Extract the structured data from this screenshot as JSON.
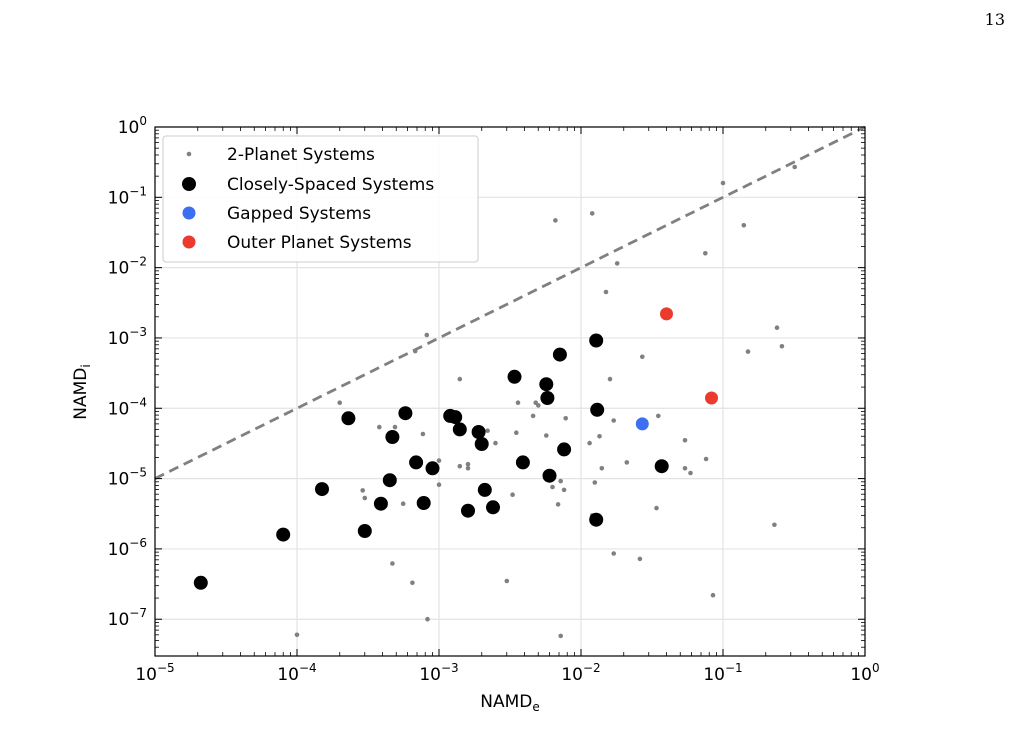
{
  "page_number": "13",
  "chart_data": {
    "type": "scatter",
    "xscale": "log",
    "yscale": "log",
    "xlim": [
      1e-05,
      1
    ],
    "ylim": [
      3e-08,
      1
    ],
    "xlabel": {
      "base": "NAMD",
      "sub": "e"
    },
    "ylabel": {
      "base": "NAMD",
      "sub": "i"
    },
    "xticks": [
      {
        "base": "10",
        "exp": "−5",
        "value": 1e-05
      },
      {
        "base": "10",
        "exp": "−4",
        "value": 0.0001
      },
      {
        "base": "10",
        "exp": "−3",
        "value": 0.001
      },
      {
        "base": "10",
        "exp": "−2",
        "value": 0.01
      },
      {
        "base": "10",
        "exp": "−1",
        "value": 0.1
      },
      {
        "base": "10",
        "exp": "0",
        "value": 1
      }
    ],
    "yticks": [
      {
        "base": "10",
        "exp": "−7",
        "value": 1e-07
      },
      {
        "base": "10",
        "exp": "−6",
        "value": 1e-06
      },
      {
        "base": "10",
        "exp": "−5",
        "value": 1e-05
      },
      {
        "base": "10",
        "exp": "−4",
        "value": 0.0001
      },
      {
        "base": "10",
        "exp": "−3",
        "value": 0.001
      },
      {
        "base": "10",
        "exp": "−2",
        "value": 0.01
      },
      {
        "base": "10",
        "exp": "−1",
        "value": 0.1
      },
      {
        "base": "10",
        "exp": "0",
        "value": 1
      }
    ],
    "grid": true,
    "legend_position": "upper-left",
    "reference_line": {
      "style": "dashed",
      "color": "#808080",
      "x": [
        1e-05,
        1
      ],
      "y": [
        1e-05,
        1
      ]
    },
    "series": [
      {
        "name": "2-Planet Systems",
        "color": "#808080",
        "marker": "small",
        "points": [
          [
            0.0001,
            6e-08
          ],
          [
            0.0002,
            0.00012
          ],
          [
            0.00029,
            6.8e-06
          ],
          [
            0.0003,
            5.3e-06
          ],
          [
            0.00038,
            5.4e-05
          ],
          [
            0.00047,
            6.2e-07
          ],
          [
            0.00049,
            5.4e-05
          ],
          [
            0.00056,
            4.4e-06
          ],
          [
            0.00065,
            3.3e-07
          ],
          [
            0.00068,
            0.00065
          ],
          [
            0.00077,
            4.3e-05
          ],
          [
            0.00082,
            0.0011
          ],
          [
            0.00083,
            1e-07
          ],
          [
            0.001,
            1.8e-05
          ],
          [
            0.001,
            8.2e-06
          ],
          [
            0.0014,
            0.00026
          ],
          [
            0.0014,
            1.5e-05
          ],
          [
            0.0016,
            1.6e-05
          ],
          [
            0.0016,
            1.4e-05
          ],
          [
            0.0022,
            4.8e-05
          ],
          [
            0.0025,
            3.2e-05
          ],
          [
            0.003,
            3.5e-07
          ],
          [
            0.0033,
            5.9e-06
          ],
          [
            0.0035,
            4.5e-05
          ],
          [
            0.0036,
            0.00012
          ],
          [
            0.0046,
            7.8e-05
          ],
          [
            0.0048,
            0.00012
          ],
          [
            0.005,
            0.00011
          ],
          [
            0.0057,
            4.1e-05
          ],
          [
            0.0063,
            7.6e-06
          ],
          [
            0.0066,
            0.047
          ],
          [
            0.0069,
            4.3e-06
          ],
          [
            0.0072,
            9.2e-06
          ],
          [
            0.0072,
            5.8e-08
          ],
          [
            0.0076,
            6.9e-06
          ],
          [
            0.0078,
            7.2e-05
          ],
          [
            0.0115,
            3.2e-05
          ],
          [
            0.012,
            3e-06
          ],
          [
            0.012,
            0.059
          ],
          [
            0.0125,
            8.8e-06
          ],
          [
            0.0135,
            4e-05
          ],
          [
            0.014,
            1.4e-05
          ],
          [
            0.015,
            0.0045
          ],
          [
            0.016,
            0.00026
          ],
          [
            0.017,
            8.6e-07
          ],
          [
            0.017,
            6.7e-05
          ],
          [
            0.018,
            0.0115
          ],
          [
            0.021,
            1.7e-05
          ],
          [
            0.026,
            7.2e-07
          ],
          [
            0.027,
            0.00054
          ],
          [
            0.034,
            3.8e-06
          ],
          [
            0.035,
            7.8e-05
          ],
          [
            0.054,
            3.5e-05
          ],
          [
            0.054,
            1.4e-05
          ],
          [
            0.059,
            1.2e-05
          ],
          [
            0.075,
            0.016
          ],
          [
            0.076,
            1.9e-05
          ],
          [
            0.079,
            0.00015
          ],
          [
            0.085,
            2.2e-07
          ],
          [
            0.1,
            0.16
          ],
          [
            0.14,
            0.04
          ],
          [
            0.15,
            0.00064
          ],
          [
            0.23,
            2.2e-06
          ],
          [
            0.24,
            0.0014
          ],
          [
            0.26,
            0.00076
          ],
          [
            0.32,
            0.27
          ]
        ]
      },
      {
        "name": "Closely-Spaced Systems",
        "color": "#000000",
        "marker": "large",
        "points": [
          [
            2.1e-05,
            3.3e-07
          ],
          [
            8e-05,
            1.6e-06
          ],
          [
            0.00015,
            7.1e-06
          ],
          [
            0.00023,
            7.2e-05
          ],
          [
            0.0003,
            1.8e-06
          ],
          [
            0.00039,
            4.4e-06
          ],
          [
            0.00045,
            9.5e-06
          ],
          [
            0.00047,
            3.9e-05
          ],
          [
            0.00058,
            8.5e-05
          ],
          [
            0.00069,
            1.7e-05
          ],
          [
            0.00078,
            4.5e-06
          ],
          [
            0.0009,
            1.4e-05
          ],
          [
            0.0012,
            7.8e-05
          ],
          [
            0.0013,
            7.5e-05
          ],
          [
            0.0014,
            5e-05
          ],
          [
            0.0016,
            3.5e-06
          ],
          [
            0.0019,
            4.6e-05
          ],
          [
            0.002,
            3.1e-05
          ],
          [
            0.0021,
            6.9e-06
          ],
          [
            0.0024,
            3.9e-06
          ],
          [
            0.0034,
            0.00028
          ],
          [
            0.0039,
            1.7e-05
          ],
          [
            0.0057,
            0.00022
          ],
          [
            0.0058,
            0.00014
          ],
          [
            0.006,
            1.1e-05
          ],
          [
            0.0071,
            0.00058
          ],
          [
            0.0076,
            2.6e-05
          ],
          [
            0.0128,
            0.00092
          ],
          [
            0.0128,
            2.6e-06
          ],
          [
            0.013,
            9.5e-05
          ],
          [
            0.037,
            1.5e-05
          ]
        ]
      },
      {
        "name": "Gapped Systems",
        "color": "#3e6ff0",
        "marker": "medium",
        "points": [
          [
            0.027,
            6e-05
          ]
        ]
      },
      {
        "name": "Outer Planet Systems",
        "color": "#ec3a2f",
        "marker": "medium",
        "points": [
          [
            0.04,
            0.0022
          ],
          [
            0.083,
            0.00014
          ]
        ]
      }
    ]
  }
}
